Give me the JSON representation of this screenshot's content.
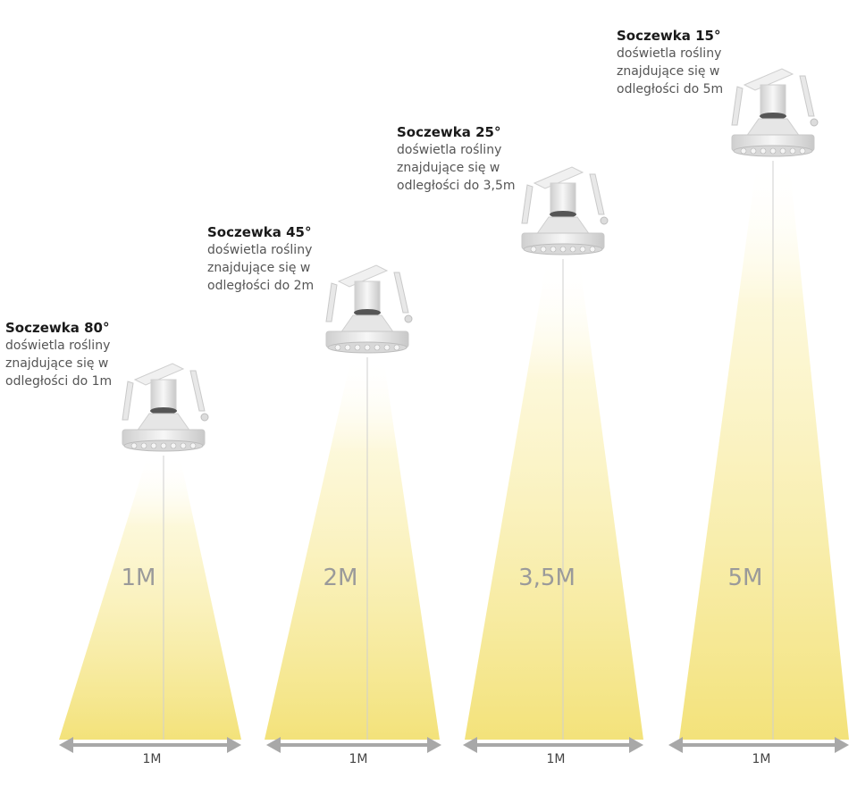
{
  "lamps": [
    {
      "lens": "Soczewka 80°",
      "desc_lines": [
        "doświetla rośliny",
        "znajdujące się w",
        "odległości do 1m"
      ],
      "distance_label": "1M",
      "width_label": "1M"
    },
    {
      "lens": "Soczewka 45°",
      "desc_lines": [
        "doświetla rośliny",
        "znajdujące się w",
        "odległości do 2m"
      ],
      "distance_label": "2M",
      "width_label": "1M"
    },
    {
      "lens": "Soczewka 25°",
      "desc_lines": [
        "doświetla rośliny",
        "znajdujące się w",
        "odległości do 3,5m"
      ],
      "distance_label": "3,5M",
      "width_label": "1M"
    },
    {
      "lens": "Soczewka 15°",
      "desc_lines": [
        "doświetla rośliny",
        "znajdujące się w",
        "odległości do 5m"
      ],
      "distance_label": "5M",
      "width_label": "1M"
    }
  ],
  "colors": {
    "beam_top": "#ffffff",
    "beam_bottom": "#f3e27a",
    "lamp_body": "#ececec",
    "arrow": "#a8a8a8"
  },
  "icons": [
    "lamp-icon",
    "double-arrow-icon"
  ]
}
